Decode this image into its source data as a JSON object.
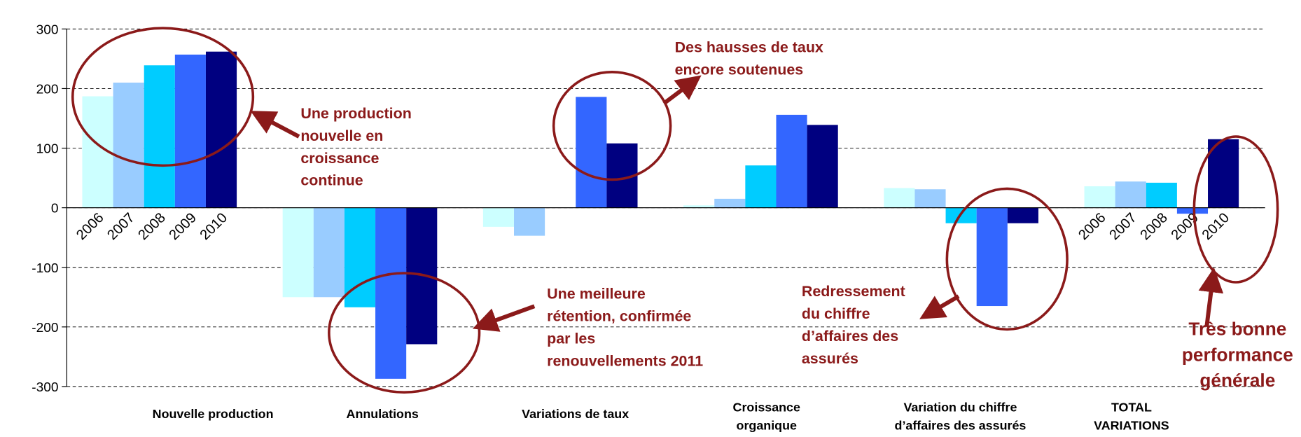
{
  "chart_data": {
    "type": "bar",
    "categories": [
      "Nouvelle production",
      "Annulations",
      "Variations de taux",
      [
        "Croissance",
        "organique"
      ],
      [
        "Variation du chiffre",
        "d’affaires des assurés"
      ],
      [
        "TOTAL",
        "VARIATIONS"
      ]
    ],
    "series": [
      {
        "name": "2006",
        "color": "#ccffff",
        "values": [
          187,
          -150,
          -32,
          4,
          33,
          36
        ]
      },
      {
        "name": "2007",
        "color": "#99ccff",
        "values": [
          210,
          -150,
          -47,
          15,
          31,
          44
        ]
      },
      {
        "name": "2008",
        "color": "#00ccff",
        "values": [
          239,
          -167,
          0,
          71,
          -26,
          42
        ]
      },
      {
        "name": "2009",
        "color": "#3366ff",
        "values": [
          257,
          -287,
          186,
          156,
          -165,
          -10
        ]
      },
      {
        "name": "2010",
        "color": "#000080",
        "values": [
          262,
          -229,
          108,
          139,
          -26,
          115
        ]
      }
    ],
    "ylim": [
      -300,
      300
    ],
    "yticks": [
      -300,
      -200,
      -100,
      0,
      100,
      200,
      300
    ],
    "grid": true,
    "annotations": [
      [
        "Une production",
        "nouvelle en",
        "croissance",
        "continue"
      ],
      [
        "Des hausses de taux",
        "encore soutenues"
      ],
      [
        "Une meilleure",
        "rétention, confirmée",
        "par les",
        "renouvellements 2011"
      ],
      [
        "Redressement",
        "du chiffre",
        "d’affaires des",
        "assurés"
      ],
      [
        "Très bonne",
        "performance",
        "générale"
      ]
    ]
  }
}
